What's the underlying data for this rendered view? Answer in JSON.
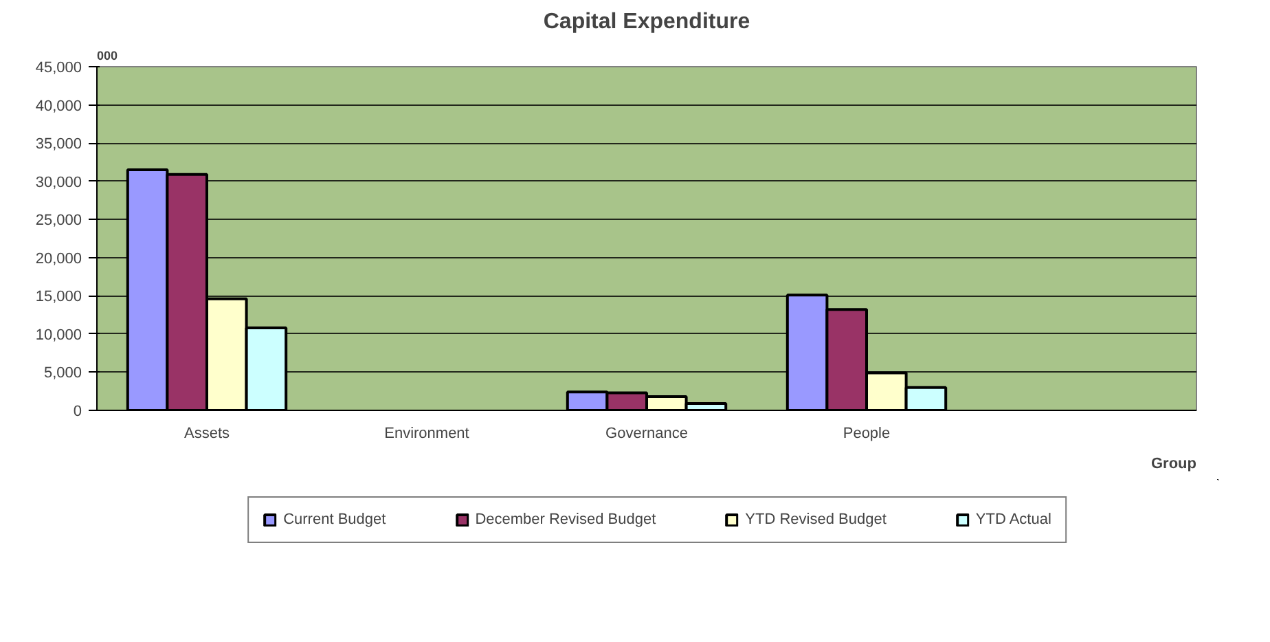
{
  "chart_data": {
    "type": "bar",
    "title": "Capital Expenditure",
    "xlabel": "Group",
    "ylabel": "000",
    "categories": [
      "Assets",
      "Environment",
      "Governance",
      "People",
      null
    ],
    "series": [
      {
        "name": "Current Budget",
        "color": "#9999ff",
        "values": [
          31500,
          null,
          2400,
          15100,
          null
        ]
      },
      {
        "name": "December Revised Budget",
        "color": "#993366",
        "values": [
          30900,
          null,
          2300,
          13200,
          null
        ]
      },
      {
        "name": "YTD Revised Budget",
        "color": "#ffffcc",
        "values": [
          14600,
          null,
          1800,
          4900,
          null
        ]
      },
      {
        "name": "YTD Actual",
        "color": "#ccffff",
        "values": [
          10800,
          null,
          900,
          3000,
          null
        ]
      }
    ],
    "ylim": [
      0,
      45000
    ],
    "yticks": [
      {
        "value": 0,
        "label": "0"
      },
      {
        "value": 5000,
        "label": "5,000"
      },
      {
        "value": 10000,
        "label": "10,000"
      },
      {
        "value": 15000,
        "label": "15,000"
      },
      {
        "value": 20000,
        "label": "20,000"
      },
      {
        "value": 25000,
        "label": "25,000"
      },
      {
        "value": 30000,
        "label": "30,000"
      },
      {
        "value": 35000,
        "label": "35,000"
      },
      {
        "value": 40000,
        "label": "40,000"
      },
      {
        "value": 45000,
        "label": "45,000"
      }
    ],
    "grid": "y",
    "legend": "bottom"
  }
}
